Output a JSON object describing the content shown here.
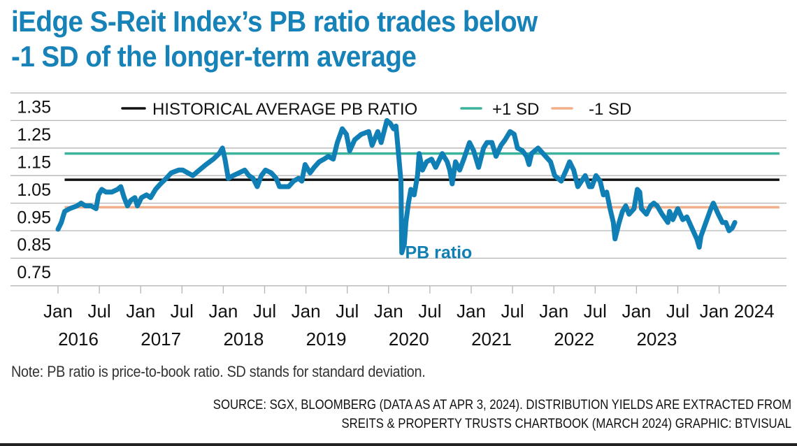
{
  "title": {
    "line1": "iEdge S-Reit Index’s PB ratio trades below",
    "line2": "-1 SD of the longer-term average"
  },
  "colors": {
    "title": "#1682b8",
    "pb_line": "#0f7fb5",
    "average": "#111111",
    "plus_sd": "#3bb39a",
    "minus_sd": "#f2b08a",
    "grid": "#b5b5b5"
  },
  "chart_data": {
    "type": "line",
    "title": "iEdge S-Reit Index’s PB ratio trades below -1 SD of the longer-term average",
    "xlabel": "",
    "ylabel": "",
    "ylim": [
      0.7,
      1.4
    ],
    "xlim": [
      2015.45,
      2024.83
    ],
    "grid": true,
    "legend_position": "top",
    "y_ticks": [
      {
        "value": 1.35,
        "label": "1.35"
      },
      {
        "value": 1.25,
        "label": "1.25"
      },
      {
        "value": 1.15,
        "label": "1.15"
      },
      {
        "value": 1.05,
        "label": "1.05"
      },
      {
        "value": 0.95,
        "label": "0.95"
      },
      {
        "value": 0.85,
        "label": "0.85"
      },
      {
        "value": 0.75,
        "label": "0.75"
      }
    ],
    "y_gridlines": [
      1.4,
      1.3,
      1.2,
      1.1,
      1.0,
      0.9,
      0.8,
      0.7
    ],
    "x_ticks": [
      {
        "value": 2016.0,
        "label": "Jan",
        "year": "2016"
      },
      {
        "value": 2016.5,
        "label": "Jul",
        "year": ""
      },
      {
        "value": 2017.0,
        "label": "Jan",
        "year": "2017"
      },
      {
        "value": 2017.5,
        "label": "Jul",
        "year": ""
      },
      {
        "value": 2018.0,
        "label": "Jan",
        "year": "2018"
      },
      {
        "value": 2018.5,
        "label": "Jul",
        "year": ""
      },
      {
        "value": 2019.0,
        "label": "Jan",
        "year": "2019"
      },
      {
        "value": 2019.5,
        "label": "Jul",
        "year": ""
      },
      {
        "value": 2020.0,
        "label": "Jan",
        "year": "2020"
      },
      {
        "value": 2020.5,
        "label": "Jul",
        "year": ""
      },
      {
        "value": 2021.0,
        "label": "Jan",
        "year": "2021"
      },
      {
        "value": 2021.5,
        "label": "Jul",
        "year": ""
      },
      {
        "value": 2022.0,
        "label": "Jan",
        "year": "2022"
      },
      {
        "value": 2022.5,
        "label": "Jul",
        "year": ""
      },
      {
        "value": 2023.0,
        "label": "Jan",
        "year": "2023"
      },
      {
        "value": 2023.5,
        "label": "Jul",
        "year": ""
      },
      {
        "value": 2024.0,
        "label": "Jan 2024",
        "year": ""
      }
    ],
    "legend": [
      {
        "name": "HISTORICAL AVERAGE PB RATIO",
        "key": "average"
      },
      {
        "name": "+1 SD",
        "key": "plus_sd"
      },
      {
        "name": "-1 SD",
        "key": "minus_sd"
      }
    ],
    "reference_lines": [
      {
        "name": "+1 SD",
        "key": "plus_sd",
        "value": 1.18,
        "x_start": 2016.08
      },
      {
        "name": "Historical average PB ratio",
        "key": "average",
        "value": 1.085,
        "x_start": 2016.08
      },
      {
        "name": "-1 SD",
        "key": "minus_sd",
        "value": 0.985,
        "x_start": 2016.08
      }
    ],
    "reference_x_end": 2024.73,
    "series": [
      {
        "name": "PB ratio",
        "label": "PB ratio",
        "label_at": {
          "x": 2020.2,
          "y": 0.83
        },
        "x": [
          2016.0,
          2016.04,
          2016.08,
          2016.14,
          2016.23,
          2016.28,
          2016.33,
          2016.4,
          2016.46,
          2016.49,
          2016.53,
          2016.58,
          2016.65,
          2016.72,
          2016.76,
          2016.8,
          2016.84,
          2016.88,
          2016.93,
          2016.96,
          2017.01,
          2017.07,
          2017.12,
          2017.18,
          2017.24,
          2017.31,
          2017.37,
          2017.46,
          2017.51,
          2017.57,
          2017.63,
          2017.71,
          2017.79,
          2017.88,
          2017.95,
          2017.99,
          2018.02,
          2018.06,
          2018.12,
          2018.19,
          2018.26,
          2018.31,
          2018.36,
          2018.41,
          2018.46,
          2018.51,
          2018.58,
          2018.64,
          2018.68,
          2018.73,
          2018.79,
          2018.85,
          2018.91,
          2018.95,
          2018.99,
          2019.05,
          2019.1,
          2019.16,
          2019.22,
          2019.27,
          2019.33,
          2019.38,
          2019.44,
          2019.49,
          2019.53,
          2019.59,
          2019.67,
          2019.76,
          2019.8,
          2019.87,
          2019.91,
          2019.98,
          2020.02,
          2020.06,
          2020.09,
          2020.12,
          2020.15,
          2020.16,
          2020.19,
          2020.21,
          2020.24,
          2020.27,
          2020.31,
          2020.35,
          2020.37,
          2020.41,
          2020.46,
          2020.52,
          2020.57,
          2020.65,
          2020.71,
          2020.74,
          2020.77,
          2020.81,
          2020.86,
          2020.91,
          2020.98,
          2021.03,
          2021.09,
          2021.15,
          2021.19,
          2021.25,
          2021.3,
          2021.36,
          2021.41,
          2021.47,
          2021.52,
          2021.56,
          2021.62,
          2021.67,
          2021.7,
          2021.73,
          2021.81,
          2021.9,
          2021.96,
          2022.01,
          2022.09,
          2022.15,
          2022.19,
          2022.24,
          2022.29,
          2022.38,
          2022.43,
          2022.46,
          2022.51,
          2022.56,
          2022.6,
          2022.64,
          2022.68,
          2022.72,
          2022.74,
          2022.79,
          2022.83,
          2022.87,
          2022.91,
          2022.97,
          2023.01,
          2023.04,
          2023.06,
          2023.12,
          2023.17,
          2023.21,
          2023.25,
          2023.31,
          2023.38,
          2023.4,
          2023.44,
          2023.5,
          2023.56,
          2023.61,
          2023.67,
          2023.73,
          2023.76,
          2023.78,
          2023.84,
          2023.9,
          2023.93,
          2023.99,
          2024.04,
          2024.08,
          2024.12,
          2024.16,
          2024.19
        ],
        "values": [
          0.905,
          0.93,
          0.97,
          0.98,
          0.99,
          1.0,
          0.99,
          0.99,
          0.98,
          1.03,
          1.05,
          1.04,
          1.04,
          1.05,
          1.06,
          1.02,
          0.99,
          1.01,
          1.02,
          0.99,
          1.02,
          1.03,
          1.02,
          1.05,
          1.07,
          1.09,
          1.11,
          1.12,
          1.12,
          1.11,
          1.1,
          1.12,
          1.14,
          1.16,
          1.18,
          1.2,
          1.16,
          1.09,
          1.1,
          1.11,
          1.12,
          1.1,
          1.09,
          1.06,
          1.1,
          1.12,
          1.11,
          1.09,
          1.06,
          1.06,
          1.06,
          1.08,
          1.09,
          1.08,
          1.14,
          1.11,
          1.13,
          1.15,
          1.16,
          1.17,
          1.16,
          1.22,
          1.27,
          1.25,
          1.19,
          1.23,
          1.25,
          1.26,
          1.21,
          1.26,
          1.22,
          1.3,
          1.29,
          1.27,
          1.28,
          1.18,
          1.08,
          0.82,
          0.85,
          0.93,
          1.0,
          1.05,
          1.03,
          1.1,
          1.18,
          1.12,
          1.15,
          1.16,
          1.13,
          1.18,
          1.15,
          1.12,
          1.07,
          1.15,
          1.12,
          1.16,
          1.22,
          1.19,
          1.13,
          1.2,
          1.22,
          1.22,
          1.17,
          1.21,
          1.23,
          1.26,
          1.25,
          1.2,
          1.19,
          1.17,
          1.14,
          1.18,
          1.2,
          1.17,
          1.15,
          1.1,
          1.08,
          1.12,
          1.15,
          1.12,
          1.06,
          1.1,
          1.06,
          1.06,
          1.1,
          1.08,
          1.03,
          1.04,
          0.98,
          0.93,
          0.87,
          0.93,
          0.97,
          0.99,
          0.96,
          0.98,
          1.05,
          1.04,
          0.98,
          0.96,
          0.99,
          1.0,
          0.99,
          0.96,
          0.93,
          0.97,
          0.94,
          0.98,
          0.94,
          0.95,
          0.91,
          0.87,
          0.84,
          0.88,
          0.93,
          0.98,
          1.0,
          0.96,
          0.93,
          0.93,
          0.9,
          0.91,
          0.93
        ]
      }
    ]
  },
  "footer": {
    "note": "Note: PB ratio is price-to-book ratio. SD stands for standard deviation.",
    "source_line1": "SOURCE: SGX, BLOOMBERG (DATA AS AT APR 3, 2024). DISTRIBUTION YIELDS ARE EXTRACTED FROM",
    "source_line2": "SREITS & PROPERTY TRUSTS CHARTBOOK (MARCH 2024)   GRAPHIC: BTVISUAL"
  }
}
